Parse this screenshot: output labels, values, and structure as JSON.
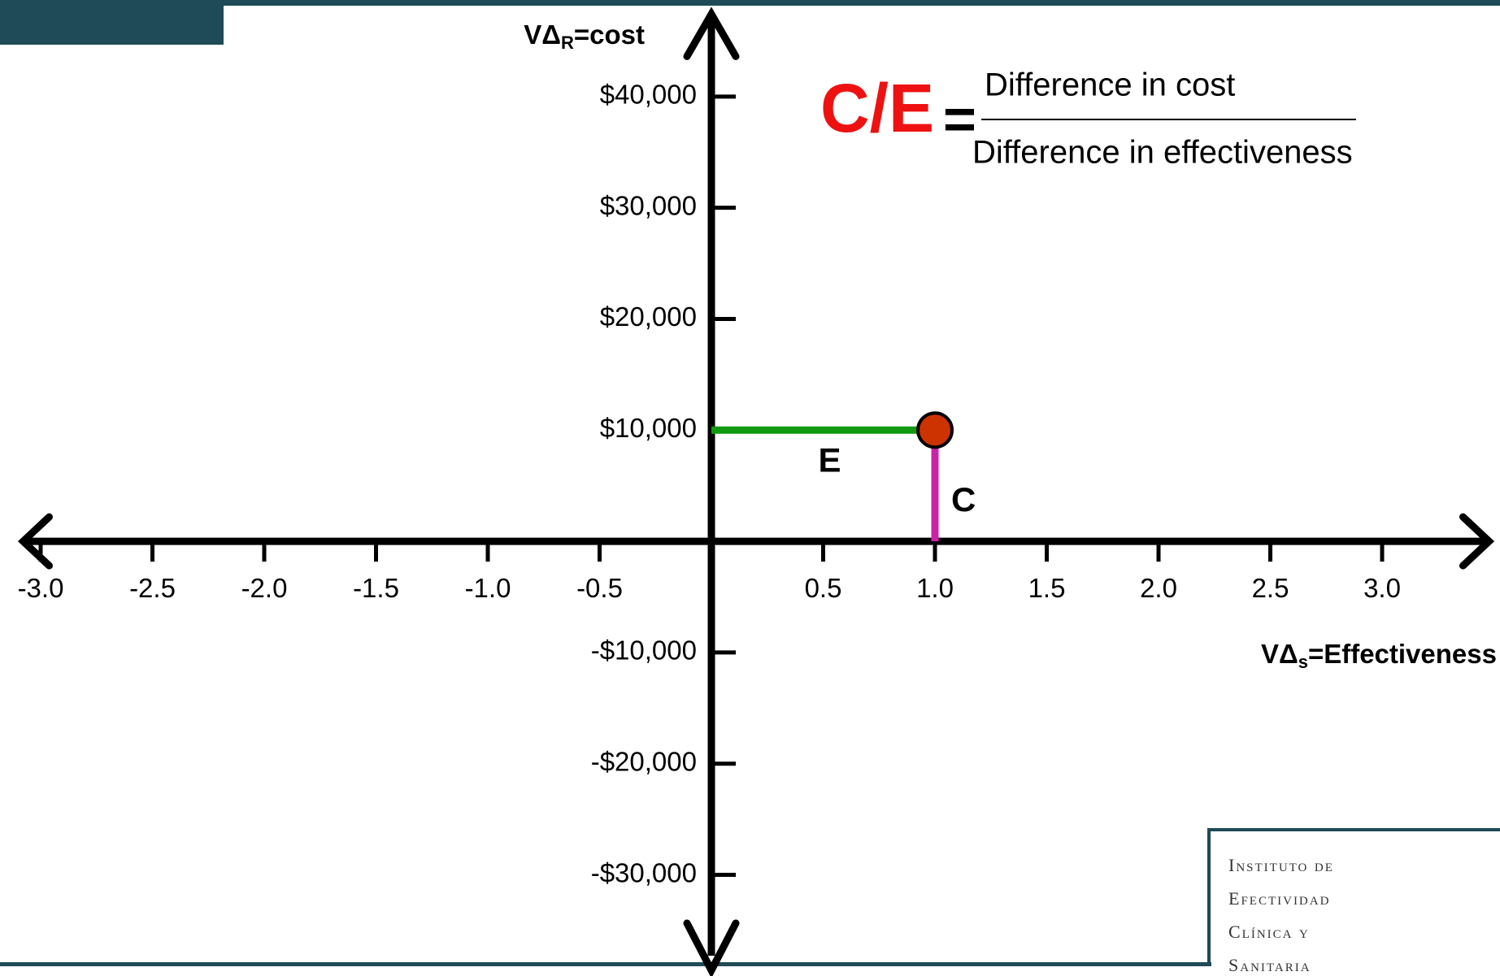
{
  "chart_data": {
    "type": "scatter",
    "xlim": [
      -3.1,
      3.5
    ],
    "ylim": [
      -38000,
      48000
    ],
    "xticks": [
      {
        "value": -3,
        "label": "-3.0"
      },
      {
        "value": -2.5,
        "label": "-2.5"
      },
      {
        "value": -2,
        "label": "-2.0"
      },
      {
        "value": -1.5,
        "label": "-1.5"
      },
      {
        "value": -1,
        "label": "-1.0"
      },
      {
        "value": -0.5,
        "label": "-0.5"
      },
      {
        "value": 0.5,
        "label": "0.5"
      },
      {
        "value": 1,
        "label": "1.0"
      },
      {
        "value": 1.5,
        "label": "1.5"
      },
      {
        "value": 2,
        "label": "2.0"
      },
      {
        "value": 2.5,
        "label": "2.5"
      },
      {
        "value": 3,
        "label": "3.0"
      }
    ],
    "yticks": [
      {
        "value": 40000,
        "label": "$40,000"
      },
      {
        "value": 30000,
        "label": "$30,000"
      },
      {
        "value": 20000,
        "label": "$20,000"
      },
      {
        "value": 10000,
        "label": "$10,000"
      },
      {
        "value": -10000,
        "label": "-$10,000"
      },
      {
        "value": -20000,
        "label": "-$20,000"
      },
      {
        "value": -30000,
        "label": "-$30,000"
      }
    ],
    "y_label": {
      "main": "VΔ",
      "sub": "R",
      "rest": "=cost"
    },
    "x_label": {
      "main": "VΔ",
      "sub": "s",
      "rest": "=Effectiveness"
    },
    "series": [
      {
        "color": "#cc3300",
        "x": [
          1
        ],
        "values": [
          10000
        ]
      }
    ],
    "e_label": "E",
    "e_color": "#119911",
    "c_label": "C",
    "c_color": "#cc22aa",
    "formula": {
      "lhs": "C/E",
      "equals": "=",
      "numerator": "Difference in cost",
      "denominator": "Difference in effectiveness",
      "color": "#ee1111"
    }
  },
  "logo": {
    "lines": [
      "Instituto de",
      "Efectividad",
      "Clínica y",
      "Sanitaria"
    ]
  }
}
